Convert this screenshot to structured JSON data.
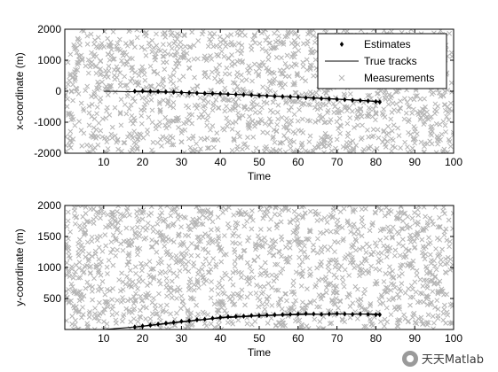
{
  "chart_data": [
    {
      "type": "scatter",
      "panel": "top",
      "title": "",
      "xlabel": "Time",
      "ylabel": "x-coordinate (m)",
      "xlim": [
        0,
        100
      ],
      "ylim": [
        -2000,
        2000
      ],
      "xticks": [
        "10",
        "20",
        "30",
        "40",
        "50",
        "60",
        "70",
        "80",
        "90",
        "100"
      ],
      "yticks": [
        "-2000",
        "-1000",
        "0",
        "1000",
        "2000"
      ],
      "grid": false,
      "legend": {
        "placement": "top-right",
        "entries": [
          "Estimates",
          "True tracks",
          "Measurements"
        ]
      },
      "series": [
        {
          "name": "Estimates",
          "style": "black diamond markers with line",
          "x": [
            18,
            20,
            22,
            24,
            26,
            28,
            30,
            32,
            34,
            36,
            38,
            40,
            42,
            44,
            46,
            48,
            50,
            52,
            54,
            56,
            58,
            60,
            62,
            64,
            66,
            68,
            70,
            72,
            74,
            76,
            78,
            80,
            81
          ],
          "y": [
            0,
            5,
            0,
            -10,
            -20,
            -30,
            -40,
            -50,
            -60,
            -70,
            -75,
            -80,
            -95,
            -105,
            -110,
            -120,
            -140,
            -150,
            -160,
            -170,
            -180,
            -190,
            -210,
            -220,
            -235,
            -245,
            -260,
            -270,
            -290,
            -300,
            -315,
            -335,
            -350
          ]
        },
        {
          "name": "True tracks",
          "style": "thin black line",
          "x": [
            10,
            30,
            50,
            70,
            81
          ],
          "y": [
            0,
            -40,
            -130,
            -250,
            -330
          ]
        },
        {
          "name": "Measurements",
          "style": "gray x markers (clutter)",
          "count": 1500,
          "x_range": [
            0,
            100
          ],
          "y_range": [
            -2000,
            2000
          ]
        }
      ]
    },
    {
      "type": "scatter",
      "panel": "bottom",
      "title": "",
      "xlabel": "Time",
      "ylabel": "y-coordinate (m)",
      "xlim": [
        0,
        100
      ],
      "ylim": [
        0,
        2000
      ],
      "xticks": [
        "10",
        "20",
        "30",
        "40",
        "50",
        "60",
        "70",
        "80",
        "90",
        "100"
      ],
      "yticks": [
        "500",
        "1000",
        "1500",
        "2000"
      ],
      "grid": false,
      "series": [
        {
          "name": "Estimates",
          "style": "black diamond markers with line",
          "x": [
            18,
            20,
            22,
            24,
            26,
            28,
            30,
            32,
            34,
            36,
            38,
            40,
            42,
            44,
            46,
            48,
            50,
            52,
            54,
            56,
            58,
            60,
            62,
            64,
            66,
            68,
            70,
            72,
            74,
            76,
            78,
            80,
            81
          ],
          "y": [
            40,
            55,
            70,
            85,
            100,
            115,
            130,
            140,
            155,
            165,
            180,
            195,
            205,
            210,
            215,
            225,
            225,
            230,
            235,
            240,
            245,
            250,
            255,
            250,
            245,
            250,
            255,
            250,
            245,
            250,
            245,
            240,
            240
          ]
        },
        {
          "name": "True tracks",
          "style": "thin black line",
          "x": [
            10,
            20,
            30,
            40,
            50,
            60,
            70,
            81
          ],
          "y": [
            0,
            50,
            120,
            185,
            220,
            240,
            250,
            250
          ]
        },
        {
          "name": "Measurements",
          "style": "gray x markers (clutter)",
          "count": 1500,
          "x_range": [
            0,
            100
          ],
          "y_range": [
            0,
            2000
          ]
        }
      ]
    }
  ],
  "watermark": {
    "text": "天天Matlab",
    "icon": "wechat-logo-icon"
  },
  "colors": {
    "axes": "#000000",
    "estimates": "#000000",
    "true_tracks": "#000000",
    "measurements": "#b4b4b4",
    "background": "#ffffff"
  }
}
